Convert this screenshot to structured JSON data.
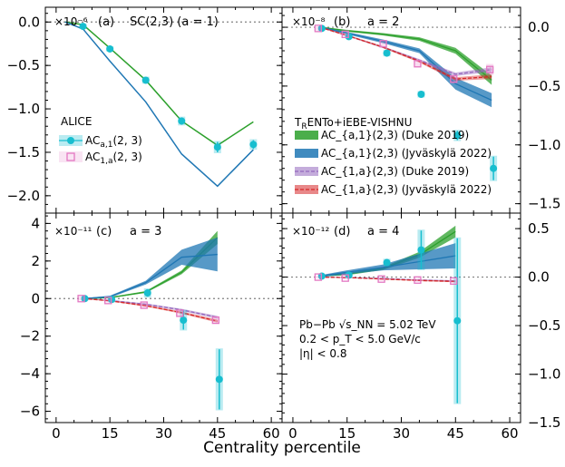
{
  "figure": {
    "x_axis_title": "Centrality percentile",
    "x_tick_labels": [
      "0",
      "15",
      "30",
      "45",
      "60"
    ],
    "colors": {
      "alice": "#17becf",
      "alice_ac1a": "#e377c2",
      "duke_sc": "#2ca02c",
      "jyv_sc": "#1f77b4",
      "duke_ac": "#9467bd",
      "jyv_ac": "#d62728",
      "zero_line": "#808080"
    },
    "legend_alice": {
      "title": "ALICE",
      "entries": [
        "AC_{a,1}(2,3)",
        "AC_{1,a}(2,3)"
      ]
    },
    "legend_model": {
      "title": "TRENTo+iEBE-VISHNU",
      "entries": [
        "AC_{a,1}(2,3) (Duke 2019)",
        "AC_{a,1}(2,3) (Jyväskylä 2022)",
        "AC_{1,a}(2,3) (Duke 2019)",
        "AC_{1,a}(2,3) (Jyväskylä 2022)"
      ]
    },
    "annotation": {
      "line1": "Pb−Pb √s_NN = 5.02 TeV",
      "line2": "0.2 < p_T < 5.0 GeV/c",
      "line3": "|η| < 0.8"
    }
  },
  "chart_data": [
    {
      "type": "line",
      "panel": "(a)",
      "title": "SC(2,3) (a = 1)",
      "multiplier": "×10⁻⁶",
      "xlabel": "Centrality percentile",
      "xlim": [
        -3,
        63
      ],
      "ylim": [
        -2.2,
        0.17
      ],
      "yticks": [
        0.0,
        -0.5,
        -1.0,
        -1.5,
        -2.0
      ],
      "ytick_labels": [
        "0.0",
        "−0.5",
        "−1.0",
        "−1.5",
        "−2.0"
      ],
      "y_axis_side": "left",
      "series": [
        {
          "name": "Duke 2019",
          "color": "#2ca02c",
          "x": [
            2.5,
            7.5,
            15,
            25,
            35,
            45,
            55
          ],
          "y": [
            0,
            -0.03,
            -0.3,
            -0.67,
            -1.14,
            -1.42,
            -1.15
          ]
        },
        {
          "name": "Jyväskylä 2022",
          "color": "#1f77b4",
          "x": [
            2.5,
            7.5,
            15,
            25,
            35,
            45,
            55
          ],
          "y": [
            0,
            -0.08,
            -0.45,
            -0.92,
            -1.52,
            -1.89,
            -1.47
          ]
        }
      ],
      "points": [
        {
          "name": "ALICE SC(2,3)",
          "color": "#17becf",
          "x": [
            7.5,
            15,
            25,
            35,
            45,
            55
          ],
          "y": [
            -0.05,
            -0.31,
            -0.67,
            -1.14,
            -1.44,
            -1.41
          ],
          "err": [
            0.02,
            0.02,
            0.03,
            0.04,
            0.06,
            0.05
          ]
        }
      ]
    },
    {
      "type": "line",
      "panel": "(b)",
      "title": "a = 2",
      "multiplier": "×10⁻⁸",
      "xlabel": "Centrality percentile",
      "xlim": [
        -3,
        63
      ],
      "ylim": [
        -1.58,
        0.17
      ],
      "yticks": [
        0.0,
        -0.5,
        -1.0,
        -1.5
      ],
      "ytick_labels": [
        "0.0",
        "−0.5",
        "−1.0",
        "−1.5"
      ],
      "y_axis_side": "right",
      "bands": [
        {
          "name": "AC_{a,1}(2,3) Duke 2019",
          "color": "#2ca02c",
          "x": [
            7.5,
            15,
            25,
            35,
            45,
            55
          ],
          "y": [
            0,
            -0.03,
            -0.06,
            -0.1,
            -0.2,
            -0.45
          ],
          "half_width": [
            0.005,
            0.008,
            0.01,
            0.015,
            0.025,
            0.04
          ]
        },
        {
          "name": "AC_{a,1}(2,3) Jyväskylä 2022",
          "color": "#1f77b4",
          "x": [
            7.5,
            15,
            25,
            35,
            45,
            55
          ],
          "y": [
            0,
            -0.05,
            -0.12,
            -0.2,
            -0.48,
            -0.62
          ],
          "half_width": [
            0.005,
            0.01,
            0.015,
            0.02,
            0.05,
            0.06
          ]
        },
        {
          "name": "AC_{1,a}(2,3) Duke 2019",
          "color": "#9467bd",
          "x": [
            7.5,
            15,
            25,
            35,
            45,
            55
          ],
          "y": [
            0,
            -0.07,
            -0.17,
            -0.28,
            -0.4,
            -0.36
          ],
          "half_width": [
            0.004,
            0.006,
            0.008,
            0.01,
            0.015,
            0.02
          ]
        },
        {
          "name": "AC_{1,a}(2,3) Jyväskylä 2022",
          "color": "#d62728",
          "x": [
            7.5,
            15,
            25,
            35,
            45,
            55
          ],
          "y": [
            0,
            -0.07,
            -0.17,
            -0.29,
            -0.44,
            -0.42
          ],
          "half_width": [
            0.004,
            0.006,
            0.008,
            0.01,
            0.015,
            0.02
          ]
        }
      ],
      "points": [
        {
          "name": "ALICE AC_{a,1}(2,3)",
          "color": "#17becf",
          "marker": "circle",
          "x": [
            8,
            15.5,
            26,
            35.5,
            45.5,
            55.5
          ],
          "y": [
            -0.01,
            -0.08,
            -0.22,
            -0.57,
            -0.92,
            -1.2
          ],
          "err": [
            0.01,
            0.01,
            0.02,
            0.02,
            0.04,
            0.1
          ]
        },
        {
          "name": "ALICE AC_{1,a}(2,3)",
          "color": "#e377c2",
          "marker": "square",
          "x": [
            7,
            14.5,
            25,
            34.5,
            44.5,
            54.5
          ],
          "y": [
            -0.01,
            -0.06,
            -0.14,
            -0.31,
            -0.44,
            -0.36
          ],
          "err": [
            0.01,
            0.01,
            0.02,
            0.02,
            0.03,
            0.04
          ]
        }
      ]
    },
    {
      "type": "line",
      "panel": "(c)",
      "title": "a = 3",
      "multiplier": "×10⁻¹¹",
      "xlabel": "Centrality percentile",
      "xlim": [
        -3,
        63
      ],
      "ylim": [
        -6.6,
        4.55
      ],
      "yticks": [
        4,
        2,
        0,
        -2,
        -4,
        -6
      ],
      "ytick_labels": [
        "4",
        "2",
        "0",
        "−2",
        "−4",
        "−6"
      ],
      "y_axis_side": "left",
      "bands": [
        {
          "name": "AC_{a,1}(2,3) Duke 2019",
          "color": "#2ca02c",
          "x": [
            7.5,
            15,
            25,
            35,
            45
          ],
          "y": [
            0,
            0.05,
            0.35,
            1.4,
            3.25
          ],
          "half_width": [
            0.02,
            0.03,
            0.05,
            0.1,
            0.35
          ]
        },
        {
          "name": "AC_{a,1}(2,3) Jyväskylä 2022",
          "color": "#1f77b4",
          "x": [
            7.5,
            15,
            25,
            35,
            45
          ],
          "y": [
            0,
            0.1,
            0.85,
            2.2,
            2.35
          ],
          "half_width": [
            0.02,
            0.05,
            0.1,
            0.4,
            0.9
          ]
        },
        {
          "name": "AC_{1,a}(2,3) Duke 2019",
          "color": "#9467bd",
          "x": [
            7.5,
            15,
            25,
            35,
            45
          ],
          "y": [
            0,
            -0.1,
            -0.3,
            -0.6,
            -1.0
          ],
          "half_width": [
            0.02,
            0.03,
            0.04,
            0.06,
            0.08
          ]
        },
        {
          "name": "AC_{1,a}(2,3) Jyväskylä 2022",
          "color": "#d62728",
          "x": [
            7.5,
            15,
            25,
            35,
            45
          ],
          "y": [
            0,
            -0.12,
            -0.38,
            -0.75,
            -1.2
          ],
          "half_width": [
            0.02,
            0.03,
            0.04,
            0.06,
            0.08
          ]
        }
      ],
      "points": [
        {
          "name": "ALICE AC_{a,1}(2,3)",
          "color": "#17becf",
          "marker": "circle",
          "x": [
            8,
            15.5,
            25.5,
            35.5,
            45.5
          ],
          "y": [
            0.0,
            -0.05,
            0.3,
            -1.15,
            -4.3
          ],
          "err": [
            0.05,
            0.1,
            0.2,
            0.5,
            1.6
          ]
        },
        {
          "name": "ALICE AC_{1,a}(2,3)",
          "color": "#e377c2",
          "marker": "square",
          "x": [
            7,
            14.5,
            24.5,
            34.5,
            44.5
          ],
          "y": [
            0.0,
            -0.1,
            -0.35,
            -0.78,
            -1.15
          ],
          "err": [
            0.05,
            0.05,
            0.08,
            0.1,
            0.15
          ]
        }
      ]
    },
    {
      "type": "line",
      "panel": "(d)",
      "title": "a = 4",
      "multiplier": "×10⁻¹²",
      "xlabel": "Centrality percentile",
      "xlim": [
        -3,
        63
      ],
      "ylim": [
        -1.5,
        0.66
      ],
      "yticks": [
        0.5,
        0.0,
        -0.5,
        -1.0,
        -1.5
      ],
      "ytick_labels": [
        "0.5",
        "0.0",
        "−0.5",
        "−1.0",
        "−1.5"
      ],
      "y_axis_side": "right",
      "bands": [
        {
          "name": "AC_{a,1}(2,3) Duke 2019",
          "color": "#2ca02c",
          "x": [
            7.5,
            15,
            25,
            35,
            45
          ],
          "y": [
            0.01,
            0.03,
            0.09,
            0.23,
            0.47
          ],
          "half_width": [
            0.005,
            0.01,
            0.015,
            0.03,
            0.06
          ]
        },
        {
          "name": "AC_{a,1}(2,3) Jyväskylä 2022",
          "color": "#1f77b4",
          "x": [
            7.5,
            15,
            25,
            35,
            45
          ],
          "y": [
            0.01,
            0.05,
            0.1,
            0.16,
            0.22
          ],
          "half_width": [
            0.01,
            0.02,
            0.03,
            0.08,
            0.13
          ]
        },
        {
          "name": "AC_{1,a}(2,3) Duke 2019",
          "color": "#9467bd",
          "x": [
            7.5,
            15,
            25,
            35,
            45
          ],
          "y": [
            0.0,
            -0.005,
            -0.015,
            -0.03,
            -0.04
          ],
          "half_width": [
            0.003,
            0.004,
            0.005,
            0.006,
            0.008
          ]
        },
        {
          "name": "AC_{1,a}(2,3) Jyväskylä 2022",
          "color": "#d62728",
          "x": [
            7.5,
            15,
            25,
            35,
            45
          ],
          "y": [
            0.0,
            -0.005,
            -0.02,
            -0.035,
            -0.045
          ],
          "half_width": [
            0.003,
            0.004,
            0.005,
            0.006,
            0.008
          ]
        }
      ],
      "points": [
        {
          "name": "ALICE AC_{a,1}(2,3)",
          "color": "#17becf",
          "marker": "circle",
          "x": [
            8,
            15.5,
            26,
            35.5,
            45.5
          ],
          "y": [
            0.01,
            0.02,
            0.15,
            0.28,
            -0.45
          ],
          "err": [
            0.01,
            0.02,
            0.03,
            0.2,
            0.85
          ]
        },
        {
          "name": "ALICE AC_{1,a}(2,3)",
          "color": "#e377c2",
          "marker": "square",
          "x": [
            7,
            14.5,
            24.5,
            34.5,
            44.5
          ],
          "y": [
            0.0,
            -0.01,
            -0.02,
            -0.03,
            -0.04
          ],
          "err": [
            0.005,
            0.005,
            0.008,
            0.01,
            0.012
          ]
        }
      ]
    }
  ]
}
